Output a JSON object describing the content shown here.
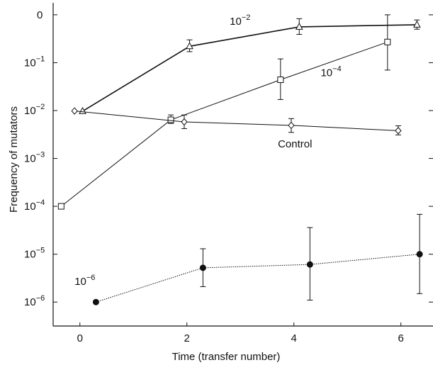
{
  "chart_data": {
    "type": "line",
    "title": "",
    "xlabel": "Time (transfer number)",
    "ylabel": "Frequency of mutators",
    "xlim": [
      -0.5,
      6.6
    ],
    "ylim_log10": [
      -6.5,
      0.25
    ],
    "y_scale": "log",
    "grid": false,
    "x_ticks": [
      {
        "value": 0,
        "label": "0"
      },
      {
        "value": 2,
        "label": "2"
      },
      {
        "value": 4,
        "label": "4"
      },
      {
        "value": 6,
        "label": "6"
      }
    ],
    "y_ticks": [
      {
        "value": 1,
        "base": "0",
        "exp": ""
      },
      {
        "value": 0.1,
        "base": "10",
        "exp": "−1"
      },
      {
        "value": 0.01,
        "base": "10",
        "exp": "−2"
      },
      {
        "value": 0.001,
        "base": "10",
        "exp": "−3"
      },
      {
        "value": 0.0001,
        "base": "10",
        "exp": "−4"
      },
      {
        "value": 1e-05,
        "base": "10",
        "exp": "−5"
      },
      {
        "value": 1e-06,
        "base": "10",
        "exp": "−6"
      }
    ],
    "series": [
      {
        "name": "10−2",
        "label_base": "10",
        "label_exp": "−2",
        "label_at": {
          "x": 2.8,
          "y": 0.62
        },
        "marker": "triangle",
        "line_style": "solid",
        "line_width": 1.6,
        "points": [
          {
            "x": 0.05,
            "y": 0.0097
          },
          {
            "x": 2.05,
            "y": 0.22,
            "err_low": 0.17,
            "err_high": 0.3
          },
          {
            "x": 4.1,
            "y": 0.56,
            "err_low": 0.39,
            "err_high": 0.83
          },
          {
            "x": 6.3,
            "y": 0.62,
            "err_low": 0.5,
            "err_high": 0.78
          }
        ]
      },
      {
        "name": "10−4",
        "label_base": "10",
        "label_exp": "−4",
        "label_at": {
          "x": 4.5,
          "y": 0.052
        },
        "marker": "square",
        "line_style": "solid",
        "line_width": 1,
        "points": [
          {
            "x": -0.35,
            "y": 0.0001
          },
          {
            "x": 1.7,
            "y": 0.0064,
            "err_low": 0.0054,
            "err_high": 0.0081
          },
          {
            "x": 3.75,
            "y": 0.044,
            "err_low": 0.017,
            "err_high": 0.12
          },
          {
            "x": 5.75,
            "y": 0.27,
            "err_low": 0.07,
            "err_high": 1.0
          }
        ]
      },
      {
        "name": "Control",
        "label_base": "Control",
        "label_exp": "",
        "label_at": {
          "x": 3.7,
          "y": 0.0017
        },
        "marker": "diamond",
        "line_style": "solid",
        "line_width": 1,
        "points": [
          {
            "x": -0.1,
            "y": 0.0098
          },
          {
            "x": 1.95,
            "y": 0.0058,
            "err_low": 0.0042,
            "err_high": 0.0081
          },
          {
            "x": 3.95,
            "y": 0.0049,
            "err_low": 0.0035,
            "err_high": 0.0068
          },
          {
            "x": 5.95,
            "y": 0.0038,
            "err_low": 0.0031,
            "err_high": 0.0048
          }
        ]
      },
      {
        "name": "10−6",
        "label_base": "10",
        "label_exp": "−6",
        "label_at": {
          "x": -0.1,
          "y": 2.3e-06
        },
        "marker": "circle-filled",
        "line_style": "dotted",
        "line_width": 1,
        "points": [
          {
            "x": 0.3,
            "y": 1e-06
          },
          {
            "x": 2.3,
            "y": 5.2e-06,
            "err_low": 2.1e-06,
            "err_high": 1.3e-05
          },
          {
            "x": 4.3,
            "y": 6.1e-06,
            "err_low": 1.1e-06,
            "err_high": 3.6e-05
          },
          {
            "x": 6.35,
            "y": 1e-05,
            "err_low": 1.5e-06,
            "err_high": 6.8e-05
          }
        ]
      }
    ]
  }
}
